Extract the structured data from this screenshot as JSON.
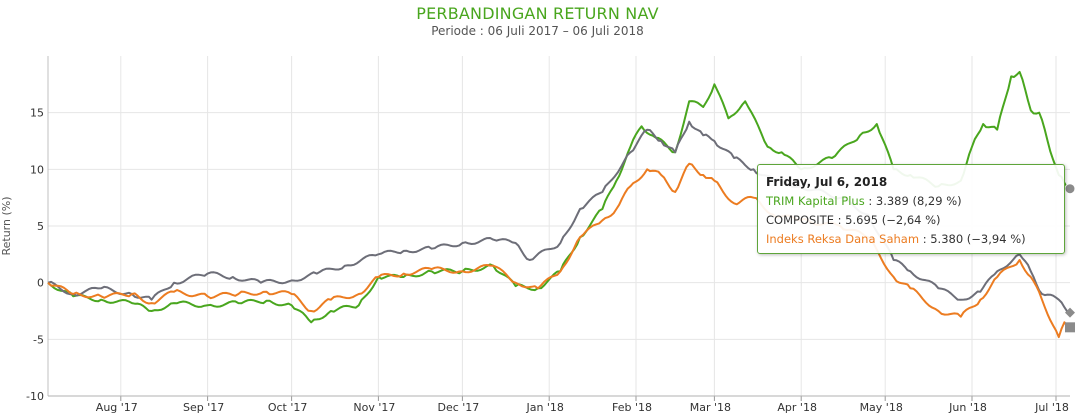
{
  "chart_data": {
    "type": "line",
    "title": "PERBANDINGAN RETURN NAV",
    "subtitle": "Periode : 06 Juli 2017 – 06 Juli 2018",
    "ylabel": "Return (%)",
    "xlabel": "",
    "ylim": [
      -10,
      20
    ],
    "yticks": [
      -10,
      -5,
      0,
      5,
      10,
      15
    ],
    "xlim": [
      "2017-07-06",
      "2018-07-06"
    ],
    "xticks": [
      {
        "label": "Aug '17",
        "date": "2017-08-01"
      },
      {
        "label": "Sep '17",
        "date": "2017-09-01"
      },
      {
        "label": "Oct '17",
        "date": "2017-10-01"
      },
      {
        "label": "Nov '17",
        "date": "2017-11-01"
      },
      {
        "label": "Dec '17",
        "date": "2017-12-01"
      },
      {
        "label": "Jan '18",
        "date": "2018-01-01"
      },
      {
        "label": "Feb '18",
        "date": "2018-02-01"
      },
      {
        "label": "Mar '18",
        "date": "2018-03-01"
      },
      {
        "label": "Apr '18",
        "date": "2018-04-01"
      },
      {
        "label": "May '18",
        "date": "2018-05-01"
      },
      {
        "label": "Jun '18",
        "date": "2018-06-01"
      },
      {
        "label": "Jul '18",
        "date": "2018-07-01"
      }
    ],
    "grid": true,
    "series": [
      {
        "name": "TRIM Kapital Plus",
        "color": "#49a61e",
        "points": [
          [
            "2017-07-06",
            0
          ],
          [
            "2017-07-15",
            -1.2
          ],
          [
            "2017-07-25",
            -1.5
          ],
          [
            "2017-08-05",
            -1.8
          ],
          [
            "2017-08-12",
            -2.5
          ],
          [
            "2017-08-20",
            -1.8
          ],
          [
            "2017-09-01",
            -2.0
          ],
          [
            "2017-09-12",
            -1.8
          ],
          [
            "2017-09-22",
            -1.6
          ],
          [
            "2017-10-01",
            -2.0
          ],
          [
            "2017-10-08",
            -3.5
          ],
          [
            "2017-10-15",
            -2.5
          ],
          [
            "2017-10-25",
            -2.0
          ],
          [
            "2017-11-01",
            0.5
          ],
          [
            "2017-11-10",
            0.5
          ],
          [
            "2017-11-20",
            1.0
          ],
          [
            "2017-12-01",
            1.0
          ],
          [
            "2017-12-12",
            1.5
          ],
          [
            "2017-12-20",
            -0.3
          ],
          [
            "2017-12-28",
            -0.5
          ],
          [
            "2018-01-05",
            1.0
          ],
          [
            "2018-01-12",
            4.0
          ],
          [
            "2018-01-20",
            6.5
          ],
          [
            "2018-01-25",
            9.0
          ],
          [
            "2018-01-30",
            12.0
          ],
          [
            "2018-02-03",
            13.8
          ],
          [
            "2018-02-08",
            12.8
          ],
          [
            "2018-02-15",
            11.5
          ],
          [
            "2018-02-20",
            16.0
          ],
          [
            "2018-02-25",
            15.5
          ],
          [
            "2018-03-01",
            17.5
          ],
          [
            "2018-03-06",
            14.5
          ],
          [
            "2018-03-12",
            16.0
          ],
          [
            "2018-03-20",
            12.0
          ],
          [
            "2018-03-25",
            11.5
          ],
          [
            "2018-04-01",
            10.0
          ],
          [
            "2018-04-12",
            11.0
          ],
          [
            "2018-04-22",
            13.0
          ],
          [
            "2018-04-28",
            14.0
          ],
          [
            "2018-05-04",
            10.0
          ],
          [
            "2018-05-10",
            9.5
          ],
          [
            "2018-05-20",
            8.5
          ],
          [
            "2018-05-28",
            9.0
          ],
          [
            "2018-06-01",
            12.0
          ],
          [
            "2018-06-05",
            14.0
          ],
          [
            "2018-06-10",
            13.5
          ],
          [
            "2018-06-15",
            18.2
          ],
          [
            "2018-06-18",
            18.6
          ],
          [
            "2018-06-22",
            15.2
          ],
          [
            "2018-06-25",
            15.0
          ],
          [
            "2018-06-28",
            12.5
          ],
          [
            "2018-07-02",
            9.5
          ],
          [
            "2018-07-04",
            8.8
          ],
          [
            "2018-07-06",
            8.29
          ]
        ]
      },
      {
        "name": "COMPOSITE",
        "color": "#6d6e78",
        "points": [
          [
            "2017-07-06",
            0
          ],
          [
            "2017-07-15",
            -1.0
          ],
          [
            "2017-07-25",
            -0.5
          ],
          [
            "2017-08-05",
            -1.0
          ],
          [
            "2017-08-12",
            -1.5
          ],
          [
            "2017-08-20",
            0.0
          ],
          [
            "2017-09-01",
            0.8
          ],
          [
            "2017-09-10",
            0.5
          ],
          [
            "2017-09-20",
            0.0
          ],
          [
            "2017-10-01",
            0.2
          ],
          [
            "2017-10-10",
            0.8
          ],
          [
            "2017-10-20",
            1.5
          ],
          [
            "2017-11-01",
            2.5
          ],
          [
            "2017-11-10",
            2.8
          ],
          [
            "2017-11-20",
            3.0
          ],
          [
            "2017-12-01",
            3.5
          ],
          [
            "2017-12-12",
            3.8
          ],
          [
            "2017-12-20",
            3.5
          ],
          [
            "2017-12-25",
            2.0
          ],
          [
            "2018-01-05",
            3.5
          ],
          [
            "2018-01-12",
            6.5
          ],
          [
            "2018-01-20",
            8.0
          ],
          [
            "2018-01-30",
            11.5
          ],
          [
            "2018-02-05",
            13.5
          ],
          [
            "2018-02-10",
            12.5
          ],
          [
            "2018-02-15",
            11.5
          ],
          [
            "2018-02-20",
            14.2
          ],
          [
            "2018-02-25",
            13.0
          ],
          [
            "2018-03-01",
            12.5
          ],
          [
            "2018-03-08",
            11.0
          ],
          [
            "2018-03-15",
            10.0
          ],
          [
            "2018-03-22",
            9.0
          ],
          [
            "2018-04-01",
            8.5
          ],
          [
            "2018-04-15",
            7.5
          ],
          [
            "2018-04-25",
            6.0
          ],
          [
            "2018-05-04",
            2.0
          ],
          [
            "2018-05-10",
            1.0
          ],
          [
            "2018-05-20",
            -0.5
          ],
          [
            "2018-05-28",
            -1.5
          ],
          [
            "2018-06-04",
            -0.8
          ],
          [
            "2018-06-10",
            1.0
          ],
          [
            "2018-06-18",
            2.5
          ],
          [
            "2018-06-22",
            1.0
          ],
          [
            "2018-06-26",
            -1.0
          ],
          [
            "2018-07-02",
            -1.5
          ],
          [
            "2018-07-06",
            -2.64
          ]
        ]
      },
      {
        "name": "Indeks Reksa Dana Saham",
        "color": "#ec7c21",
        "points": [
          [
            "2017-07-06",
            0
          ],
          [
            "2017-07-15",
            -1.0
          ],
          [
            "2017-07-25",
            -1.2
          ],
          [
            "2017-08-05",
            -1.0
          ],
          [
            "2017-08-12",
            -1.8
          ],
          [
            "2017-08-20",
            -0.8
          ],
          [
            "2017-09-01",
            -1.2
          ],
          [
            "2017-09-12",
            -1.0
          ],
          [
            "2017-09-22",
            -0.8
          ],
          [
            "2017-10-01",
            -1.0
          ],
          [
            "2017-10-08",
            -2.5
          ],
          [
            "2017-10-15",
            -1.5
          ],
          [
            "2017-10-25",
            -1.0
          ],
          [
            "2017-11-01",
            0.5
          ],
          [
            "2017-11-10",
            0.8
          ],
          [
            "2017-11-20",
            1.2
          ],
          [
            "2017-12-01",
            1.0
          ],
          [
            "2017-12-12",
            1.5
          ],
          [
            "2017-12-20",
            0.0
          ],
          [
            "2017-12-28",
            -0.5
          ],
          [
            "2018-01-05",
            1.0
          ],
          [
            "2018-01-12",
            4.0
          ],
          [
            "2018-01-20",
            5.5
          ],
          [
            "2018-01-25",
            6.5
          ],
          [
            "2018-01-30",
            8.5
          ],
          [
            "2018-02-05",
            10.0
          ],
          [
            "2018-02-10",
            9.5
          ],
          [
            "2018-02-15",
            8.0
          ],
          [
            "2018-02-20",
            10.5
          ],
          [
            "2018-02-25",
            9.5
          ],
          [
            "2018-03-01",
            9.0
          ],
          [
            "2018-03-08",
            7.0
          ],
          [
            "2018-03-15",
            7.5
          ],
          [
            "2018-03-22",
            6.0
          ],
          [
            "2018-04-01",
            5.5
          ],
          [
            "2018-04-15",
            5.0
          ],
          [
            "2018-04-25",
            4.0
          ],
          [
            "2018-05-04",
            0.5
          ],
          [
            "2018-05-10",
            -0.5
          ],
          [
            "2018-05-20",
            -2.5
          ],
          [
            "2018-05-28",
            -3.0
          ],
          [
            "2018-06-04",
            -1.5
          ],
          [
            "2018-06-10",
            0.5
          ],
          [
            "2018-06-18",
            2.0
          ],
          [
            "2018-06-22",
            0.5
          ],
          [
            "2018-06-26",
            -1.5
          ],
          [
            "2018-07-02",
            -4.8
          ],
          [
            "2018-07-04",
            -3.5
          ],
          [
            "2018-07-06",
            -3.94
          ]
        ]
      }
    ]
  },
  "tooltip": {
    "date": "Friday, Jul 6, 2018",
    "rows": [
      {
        "label": "TRIM Kapital Plus",
        "value": "3.389 (8,29 %)"
      },
      {
        "label": "COMPOSITE",
        "value": "5.695 (−2,64 %)"
      },
      {
        "label": "Indeks Reksa Dana Saham",
        "value": "5.380 (−3,94 %)"
      }
    ]
  }
}
